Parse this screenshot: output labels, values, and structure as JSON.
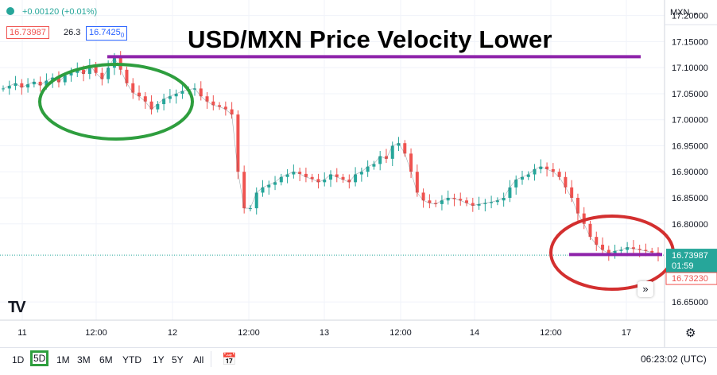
{
  "header": {
    "change_text": "+0.00120 (+0.01%)",
    "bid": "16.73987",
    "spread": "26.3",
    "ask": "16.7425",
    "ask_small": "0",
    "title": "USD/MXN Price Velocity Lower",
    "scale_selector": "MXN ⌄"
  },
  "price_axis": {
    "ticks": [
      "17.20000",
      "17.15000",
      "17.10000",
      "17.05000",
      "17.00000",
      "16.95000",
      "16.90000",
      "16.85000",
      "16.80000",
      "16.65000"
    ],
    "current_price_label": "16.73987",
    "countdown_label": "01:59",
    "bid_label": "16.73230"
  },
  "time_axis": {
    "ticks": [
      "11",
      "12:00",
      "12",
      "12:00",
      "13",
      "12:00",
      "14",
      "12:00",
      "17"
    ]
  },
  "chart_data": {
    "type": "line",
    "title": "USD/MXN Price Velocity Lower",
    "xlabel": "",
    "ylabel": "",
    "x_ticks": [
      "11",
      "12:00",
      "12",
      "12:00",
      "13",
      "12:00",
      "14",
      "12:00",
      "17"
    ],
    "ylim": [
      16.615,
      17.23
    ],
    "y_ticks": [
      16.65,
      16.8,
      16.85,
      16.9,
      16.95,
      17.0,
      17.05,
      17.1,
      17.15,
      17.2
    ],
    "series": [
      {
        "values": [
          17.06,
          17.065,
          17.07,
          17.062,
          17.068,
          17.073,
          17.066,
          17.075,
          17.081,
          17.072,
          17.085,
          17.09,
          17.096,
          17.088,
          17.105,
          17.09,
          17.078,
          17.1,
          17.12,
          17.096,
          17.07,
          17.052,
          17.045,
          17.035,
          17.02,
          17.03,
          17.04,
          17.045,
          17.05,
          17.055,
          17.058,
          17.06,
          17.045,
          17.035,
          17.028,
          17.025,
          17.02,
          17.01,
          16.9,
          16.83,
          16.83,
          16.86,
          16.87,
          16.875,
          16.88,
          16.89,
          16.895,
          16.9,
          16.896,
          16.89,
          16.886,
          16.88,
          16.885,
          16.895,
          16.89,
          16.885,
          16.88,
          16.895,
          16.9,
          16.91,
          16.915,
          16.93,
          16.925,
          16.95,
          16.955,
          16.935,
          16.9,
          16.86,
          16.845,
          16.84,
          16.838,
          16.845,
          16.85,
          16.848,
          16.845,
          16.84,
          16.835,
          16.838,
          16.84,
          16.842,
          16.845,
          16.85,
          16.87,
          16.885,
          16.89,
          16.895,
          16.905,
          16.91,
          16.905,
          16.9,
          16.89,
          16.87,
          16.85,
          16.82,
          16.8,
          16.775,
          16.76,
          16.75,
          16.743,
          16.748,
          16.75,
          16.755,
          16.752,
          16.75,
          16.748,
          16.745,
          16.74
        ]
      }
    ],
    "horizontal_lines": [
      17.121,
      16.741
    ],
    "line_color": "#8e24aa",
    "up_color": "#26a69a",
    "down_color": "#ef5350",
    "highlight_circles": [
      {
        "color": "#2e9e3e",
        "center_x": 12.2,
        "center_y": 17.075
      },
      {
        "color": "#d32f2f",
        "center_x": 17.0,
        "center_y": 16.745
      }
    ],
    "grid": true
  },
  "bottom_bar": {
    "ranges": [
      "1D",
      "5D",
      "1M",
      "3M",
      "6M",
      "YTD",
      "1Y",
      "5Y",
      "All"
    ],
    "active_range": "5D",
    "clock": "06:23:02 (UTC)"
  },
  "icons": {
    "calendar": "calendar-icon",
    "settings": "gear-icon",
    "scroll": "double-chevron-right-icon",
    "logo": "tradingview-logo"
  }
}
